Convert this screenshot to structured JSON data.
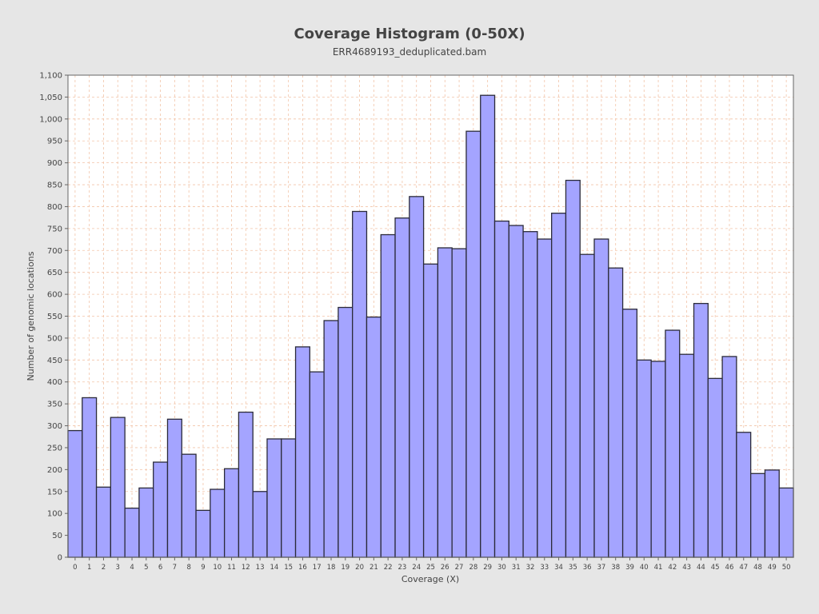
{
  "chart_data": {
    "type": "bar",
    "title": "Coverage Histogram (0-50X)",
    "subtitle": "ERR4689193_deduplicated.bam",
    "xlabel": "Coverage (X)",
    "ylabel": "Number of genomic locations",
    "categories": [
      "0",
      "1",
      "2",
      "3",
      "4",
      "5",
      "6",
      "7",
      "8",
      "9",
      "10",
      "11",
      "12",
      "13",
      "14",
      "15",
      "16",
      "17",
      "18",
      "19",
      "20",
      "21",
      "22",
      "23",
      "24",
      "25",
      "26",
      "27",
      "28",
      "29",
      "30",
      "31",
      "32",
      "33",
      "34",
      "35",
      "36",
      "37",
      "38",
      "39",
      "40",
      "41",
      "42",
      "43",
      "44",
      "45",
      "46",
      "47",
      "48",
      "49",
      "50"
    ],
    "values": [
      289,
      364,
      160,
      319,
      112,
      158,
      217,
      315,
      235,
      107,
      155,
      202,
      331,
      150,
      270,
      270,
      480,
      423,
      540,
      570,
      789,
      548,
      736,
      774,
      823,
      669,
      706,
      704,
      972,
      1054,
      767,
      757,
      743,
      726,
      785,
      860,
      691,
      726,
      660,
      566,
      450,
      447,
      518,
      463,
      579,
      408,
      458,
      285,
      191,
      199,
      158
    ],
    "ylim": [
      0,
      1100
    ],
    "yticks": [
      "0",
      "50",
      "100",
      "150",
      "200",
      "250",
      "300",
      "350",
      "400",
      "450",
      "500",
      "550",
      "600",
      "650",
      "700",
      "750",
      "800",
      "850",
      "900",
      "950",
      "1,000",
      "1,050",
      "1,100"
    ],
    "grid": true,
    "colors": {
      "background": "#e6e6e6",
      "plot_background": "#ffffff",
      "bar_fill": "#a4a4ff",
      "bar_stroke": "#2b2b3a",
      "grid": "#f2c4a8",
      "axis": "#666666",
      "text": "#444444"
    }
  }
}
